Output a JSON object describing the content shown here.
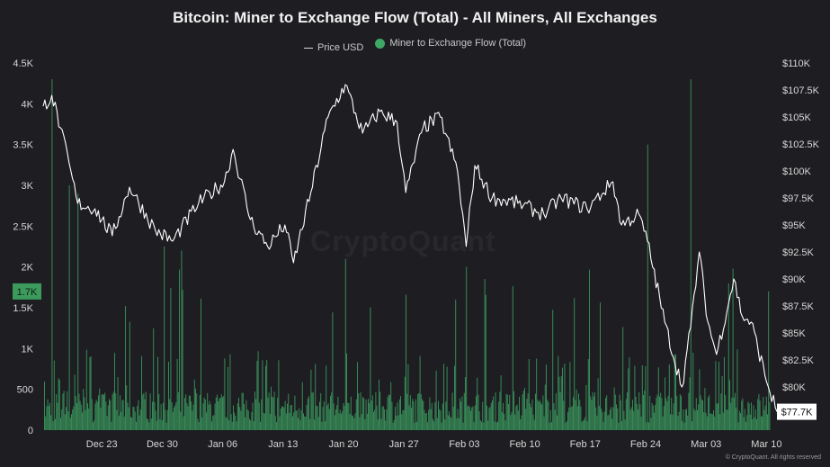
{
  "title": "Bitcoin: Miner to Exchange Flow (Total) - All Miners, All Exchanges",
  "legend": {
    "price_label": "Price USD",
    "flow_label": "Miner to Exchange Flow (Total)"
  },
  "watermark": "CryptoQuant",
  "copyright": "© CryptoQuant. All rights reserved",
  "colors": {
    "background": "#1e1e22",
    "flow_bar": "#3fa866",
    "flow_badge": "#3b9a5c",
    "price_line": "#ffffff"
  },
  "chart_data": {
    "type": "bar",
    "x_tick_labels": [
      "Dec 23",
      "Dec 30",
      "Jan 06",
      "Jan 13",
      "Jan 20",
      "Jan 27",
      "Feb 03",
      "Feb 10",
      "Feb 17",
      "Feb 24",
      "Mar 03",
      "Mar 10"
    ],
    "y_left": {
      "label": "Miner to Exchange Flow (Total)",
      "range": [
        0,
        4500
      ],
      "ticks": [
        0,
        500,
        1000,
        1500,
        2000,
        2500,
        3000,
        3500,
        4000,
        4500
      ],
      "tick_labels": [
        "0",
        "500",
        "1K",
        "1.5K",
        "2K",
        "2.5K",
        "3K",
        "3.5K",
        "4K",
        "4.5K"
      ]
    },
    "y_right": {
      "label": "Price USD",
      "range": [
        76000,
        110000
      ],
      "ticks": [
        80000,
        82500,
        85000,
        87500,
        90000,
        92500,
        95000,
        97500,
        100000,
        102500,
        105000,
        107500,
        110000
      ],
      "tick_labels": [
        "$80K",
        "$82.5K",
        "$85K",
        "$87.5K",
        "$90K",
        "$92.5K",
        "$95K",
        "$97.5K",
        "$100K",
        "$102.5K",
        "$105K",
        "$107.5K",
        "$110K"
      ]
    },
    "current_flow_label": "1.7K",
    "current_flow_value": 1700,
    "current_price_label": "$77.7K",
    "current_price_value": 77700,
    "flow_peaks": [
      {
        "date": "Dec 17",
        "value": 4300
      },
      {
        "date": "Dec 19",
        "value": 3000
      },
      {
        "date": "Dec 20",
        "value": 2900
      },
      {
        "date": "Dec 30",
        "value": 2250
      },
      {
        "date": "Jan 01",
        "value": 2200
      },
      {
        "date": "Jan 20",
        "value": 2100
      },
      {
        "date": "Feb 03",
        "value": 2000
      },
      {
        "date": "Feb 24",
        "value": 3500
      },
      {
        "date": "Mar 01",
        "value": 4300
      },
      {
        "date": "Mar 10",
        "value": 1700
      }
    ],
    "price_series": [
      {
        "date": "Dec 16",
        "value": 106000
      },
      {
        "date": "Dec 17",
        "value": 107000
      },
      {
        "date": "Dec 18",
        "value": 104000
      },
      {
        "date": "Dec 20",
        "value": 97000
      },
      {
        "date": "Dec 22",
        "value": 96500
      },
      {
        "date": "Dec 24",
        "value": 94000
      },
      {
        "date": "Dec 26",
        "value": 98500
      },
      {
        "date": "Dec 29",
        "value": 94500
      },
      {
        "date": "Dec 31",
        "value": 93500
      },
      {
        "date": "Jan 03",
        "value": 97000
      },
      {
        "date": "Jan 06",
        "value": 99000
      },
      {
        "date": "Jan 07",
        "value": 102000
      },
      {
        "date": "Jan 09",
        "value": 95500
      },
      {
        "date": "Jan 11",
        "value": 93000
      },
      {
        "date": "Jan 13",
        "value": 95000
      },
      {
        "date": "Jan 14",
        "value": 91500
      },
      {
        "date": "Jan 16",
        "value": 98000
      },
      {
        "date": "Jan 18",
        "value": 105000
      },
      {
        "date": "Jan 20",
        "value": 108000
      },
      {
        "date": "Jan 22",
        "value": 103500
      },
      {
        "date": "Jan 24",
        "value": 105500
      },
      {
        "date": "Jan 26",
        "value": 104500
      },
      {
        "date": "Jan 27",
        "value": 98000
      },
      {
        "date": "Jan 29",
        "value": 104000
      },
      {
        "date": "Jan 31",
        "value": 105000
      },
      {
        "date": "Feb 02",
        "value": 100000
      },
      {
        "date": "Feb 03",
        "value": 93000
      },
      {
        "date": "Feb 04",
        "value": 100500
      },
      {
        "date": "Feb 06",
        "value": 97500
      },
      {
        "date": "Feb 09",
        "value": 97000
      },
      {
        "date": "Feb 12",
        "value": 96000
      },
      {
        "date": "Feb 14",
        "value": 97500
      },
      {
        "date": "Feb 17",
        "value": 96500
      },
      {
        "date": "Feb 20",
        "value": 99000
      },
      {
        "date": "Feb 21",
        "value": 95000
      },
      {
        "date": "Feb 23",
        "value": 96000
      },
      {
        "date": "Feb 24",
        "value": 93500
      },
      {
        "date": "Feb 26",
        "value": 86000
      },
      {
        "date": "Feb 28",
        "value": 80000
      },
      {
        "date": "Mar 01",
        "value": 85500
      },
      {
        "date": "Mar 02",
        "value": 92500
      },
      {
        "date": "Mar 03",
        "value": 86000
      },
      {
        "date": "Mar 04",
        "value": 83000
      },
      {
        "date": "Mar 06",
        "value": 90000
      },
      {
        "date": "Mar 07",
        "value": 86500
      },
      {
        "date": "Mar 08",
        "value": 86000
      },
      {
        "date": "Mar 10",
        "value": 80000
      },
      {
        "date": "Mar 11",
        "value": 77700
      }
    ]
  }
}
